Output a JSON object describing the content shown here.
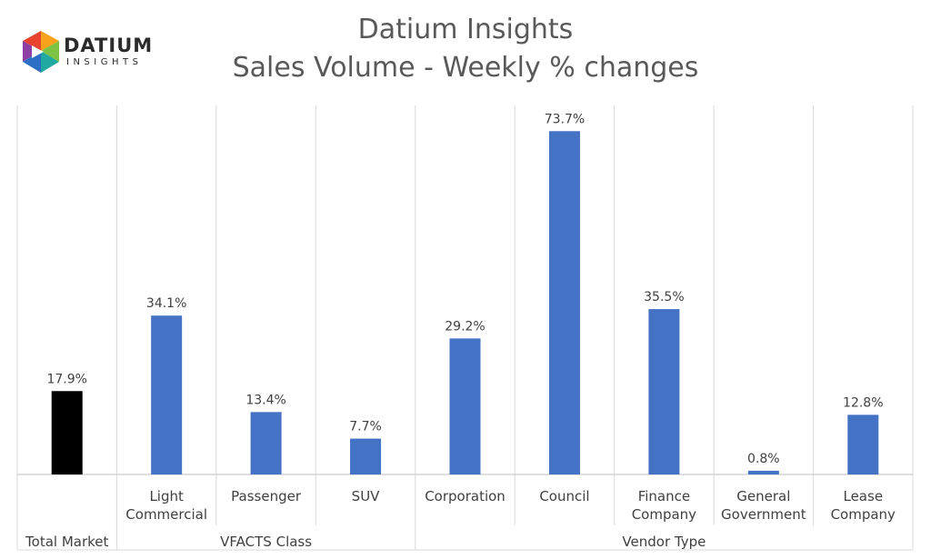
{
  "header": {
    "title": "Datium Insights",
    "subtitle": "Sales Volume - Weekly % changes",
    "logo_text": "DATIUM",
    "logo_subtext": "INSIGHTS"
  },
  "chart_data": {
    "type": "bar",
    "title": "Datium Insights",
    "subtitle": "Sales Volume - Weekly % changes",
    "ylim": [
      0,
      80
    ],
    "grid": false,
    "legend": "none",
    "categories": [
      {
        "label_lines": [
          "Total Market"
        ],
        "group": "",
        "value": 17.9,
        "value_label": "17.9%",
        "color": "#000000"
      },
      {
        "label_lines": [
          "Light",
          "Commercial"
        ],
        "group": "VFACTS Class",
        "value": 34.1,
        "value_label": "34.1%",
        "color": "#4472C4"
      },
      {
        "label_lines": [
          "Passenger"
        ],
        "group": "VFACTS Class",
        "value": 13.4,
        "value_label": "13.4%",
        "color": "#4472C4"
      },
      {
        "label_lines": [
          "SUV"
        ],
        "group": "VFACTS Class",
        "value": 7.7,
        "value_label": "7.7%",
        "color": "#4472C4"
      },
      {
        "label_lines": [
          "Corporation"
        ],
        "group": "Vendor Type",
        "value": 29.2,
        "value_label": "29.2%",
        "color": "#4472C4"
      },
      {
        "label_lines": [
          "Council"
        ],
        "group": "Vendor Type",
        "value": 73.7,
        "value_label": "73.7%",
        "color": "#4472C4"
      },
      {
        "label_lines": [
          "Finance",
          "Company"
        ],
        "group": "Vendor Type",
        "value": 35.5,
        "value_label": "35.5%",
        "color": "#4472C4"
      },
      {
        "label_lines": [
          "General",
          "Government"
        ],
        "group": "Vendor Type",
        "value": 0.8,
        "value_label": "0.8%",
        "color": "#4472C4"
      },
      {
        "label_lines": [
          "Lease",
          "Company"
        ],
        "group": "Vendor Type",
        "value": 12.8,
        "value_label": "12.8%",
        "color": "#4472C4"
      }
    ],
    "groups": [
      {
        "label": "Total Market",
        "start": 0,
        "end": 0
      },
      {
        "label": "VFACTS Class",
        "start": 1,
        "end": 3
      },
      {
        "label": "Vendor Type",
        "start": 4,
        "end": 8
      }
    ]
  }
}
